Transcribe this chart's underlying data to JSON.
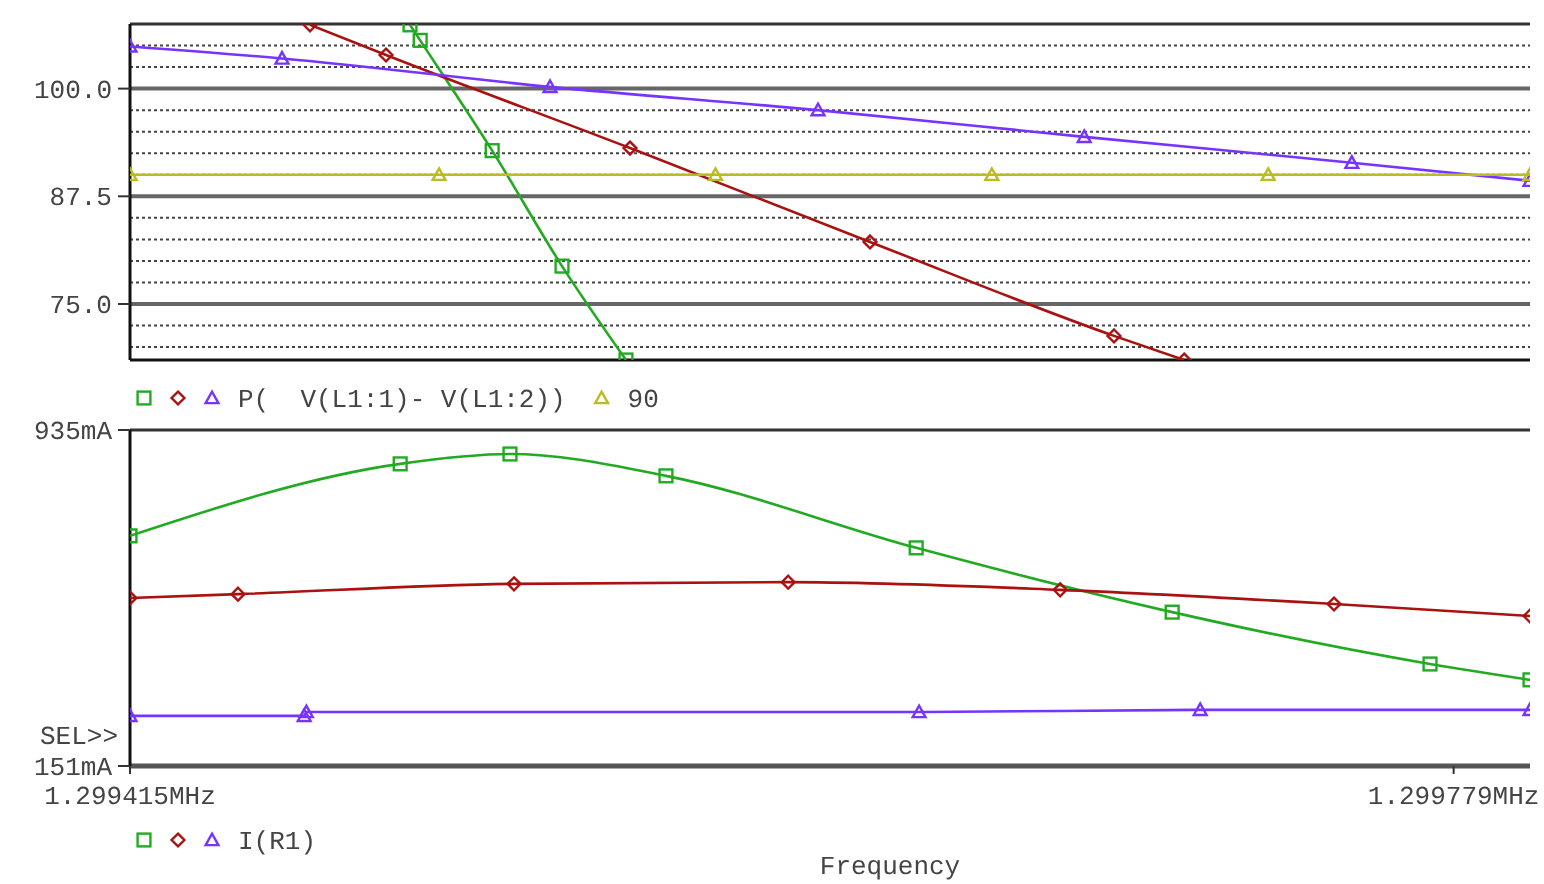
{
  "chart_data": [
    {
      "type": "line",
      "xlim": [
        1.299415,
        1.2998
      ],
      "ylim": [
        68.5,
        107.5
      ],
      "yticks": [
        {
          "value": 70,
          "label": null
        },
        {
          "value": 72.5,
          "label": null
        },
        {
          "value": 75,
          "label": "75.0"
        },
        {
          "value": 77.5,
          "label": null
        },
        {
          "value": 80,
          "label": null
        },
        {
          "value": 82.5,
          "label": null
        },
        {
          "value": 85,
          "label": null
        },
        {
          "value": 87.5,
          "label": "87.5"
        },
        {
          "value": 90,
          "label": null
        },
        {
          "value": 92.5,
          "label": null
        },
        {
          "value": 95,
          "label": null
        },
        {
          "value": 97.5,
          "label": null
        },
        {
          "value": 100,
          "label": "100.0"
        },
        {
          "value": 102.5,
          "label": null
        },
        {
          "value": 105,
          "label": null
        }
      ],
      "tick_labels": "y",
      "grid": "y",
      "legend": "bottom",
      "series": [
        {
          "color": "#22aa22",
          "marker": "square",
          "x": [
            1.299492,
            1.2994948,
            1.2995146,
            1.2995338,
            1.2995514
          ],
          "values": [
            107.4,
            105.6,
            92.8,
            79.4,
            68.5
          ]
        },
        {
          "color": "#aa1111",
          "marker": "diamond",
          "x": [
            1.2994645,
            1.2994854,
            1.2995525,
            1.2996185,
            1.2996856,
            1.2997049
          ],
          "values": [
            107.4,
            103.9,
            93.1,
            82.2,
            71.3,
            68.5
          ]
        },
        {
          "name": "P(  V(L1:1)- V(L1:2))",
          "color": "#7733ff",
          "marker": "triangle",
          "x": [
            1.299415,
            1.2994568,
            1.2995305,
            1.2996042,
            1.2996774,
            1.299751,
            1.2998
          ],
          "values": [
            104.9,
            103.5,
            100.2,
            97.5,
            94.4,
            91.4,
            89.3
          ]
        },
        {
          "name": "90",
          "color": "#bbbb22",
          "marker": "triangle",
          "x": [
            1.299415,
            1.2995,
            1.299576,
            1.299652,
            1.299728,
            1.2998
          ],
          "values": [
            90,
            90,
            90,
            90,
            90,
            90
          ]
        }
      ]
    },
    {
      "type": "line",
      "xlim": [
        1.299415,
        1.2998
      ],
      "ylim": [
        151,
        935
      ],
      "xticks": [
        {
          "value": 1.299415,
          "label": "1.299415MHz"
        },
        {
          "value": 1.299779,
          "label": "1.299779MHz"
        }
      ],
      "yticks": [
        {
          "value": 151,
          "label": "151mA"
        },
        {
          "value": 935,
          "label": "935mA"
        }
      ],
      "xlabel": "Frequency",
      "annotations": [
        "SEL>>"
      ],
      "legend": "bottom",
      "series": [
        {
          "color": "#22aa22",
          "marker": "square",
          "x": [
            1.299415,
            1.2994893,
            1.2995195,
            1.2995624,
            1.2996312,
            1.2997016,
            1.2997725,
            1.2998
          ],
          "values": [
            688,
            856,
            879,
            828,
            660,
            510,
            389,
            352
          ]
        },
        {
          "color": "#aa1111",
          "marker": "diamond",
          "x": [
            1.299415,
            1.2994447,
            1.2995206,
            1.299596,
            1.2996708,
            1.2997461,
            1.2998
          ],
          "values": [
            543,
            552,
            576,
            580,
            562,
            529,
            501
          ]
        },
        {
          "name": "I(R1)",
          "color": "#7733ff",
          "marker": "triangle",
          "x": [
            1.299415,
            1.2994629,
            1.2994635,
            1.299632,
            1.2997093,
            1.2998
          ],
          "values": [
            268,
            268,
            277,
            277,
            282,
            282
          ]
        }
      ]
    }
  ]
}
